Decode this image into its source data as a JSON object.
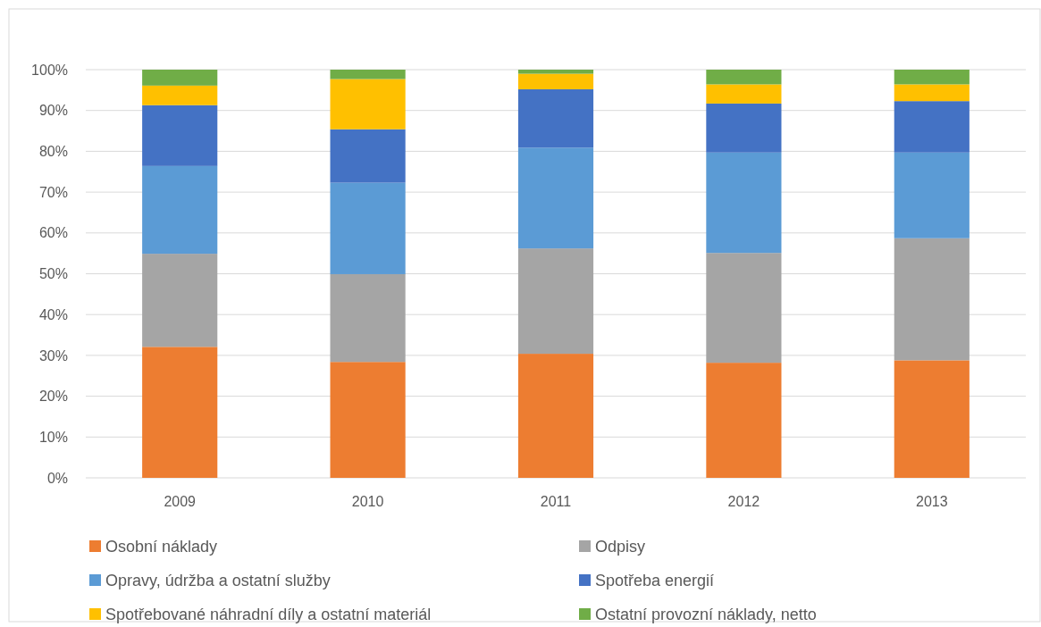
{
  "chart_data": {
    "type": "bar",
    "stacked": true,
    "categories": [
      "2009",
      "2010",
      "2011",
      "2012",
      "2013"
    ],
    "series": [
      {
        "name": "Osobní náklady",
        "color": "#ed7d31",
        "values": [
          32.1,
          28.4,
          30.4,
          28.2,
          28.8
        ]
      },
      {
        "name": "Odpisy",
        "color": "#a5a5a5",
        "values": [
          22.8,
          21.5,
          25.8,
          26.9,
          29.9
        ]
      },
      {
        "name": "Opravy, údržba a ostatní služby",
        "color": "#5b9bd5",
        "values": [
          21.5,
          22.4,
          24.7,
          24.6,
          21.0
        ]
      },
      {
        "name": "Spotřeba energií",
        "color": "#4472c4",
        "values": [
          14.9,
          13.1,
          14.3,
          12.0,
          12.6
        ]
      },
      {
        "name": "Spotřebované náhradní díly a ostatní materiál",
        "color": "#ffc000",
        "values": [
          4.8,
          12.3,
          3.8,
          4.7,
          4.1
        ]
      },
      {
        "name": "Ostatní provozní náklady, netto",
        "color": "#70ad47",
        "values": [
          3.9,
          2.3,
          1.0,
          3.6,
          3.6
        ]
      }
    ],
    "ylim": [
      0,
      100
    ],
    "yticks": [
      {
        "value": 0,
        "label": "0%"
      },
      {
        "value": 10,
        "label": "10%"
      },
      {
        "value": 20,
        "label": "20%"
      },
      {
        "value": 30,
        "label": "30%"
      },
      {
        "value": 40,
        "label": "40%"
      },
      {
        "value": 50,
        "label": "50%"
      },
      {
        "value": 60,
        "label": "60%"
      },
      {
        "value": 70,
        "label": "70%"
      },
      {
        "value": 80,
        "label": "80%"
      },
      {
        "value": 90,
        "label": "90%"
      },
      {
        "value": 100,
        "label": "100%"
      }
    ],
    "grid": "y",
    "legend": "bottom"
  }
}
